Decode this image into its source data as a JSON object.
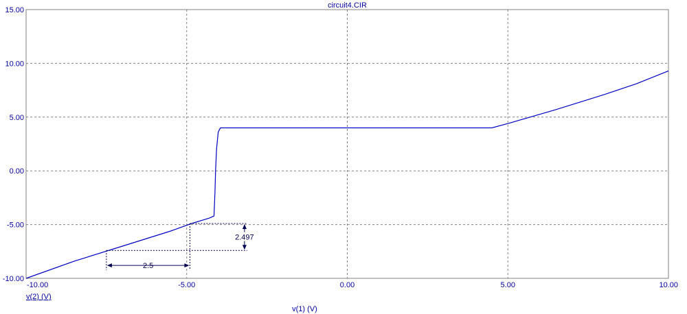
{
  "colors": {
    "axis_text": "#0000a0",
    "title_text": "#0000a0",
    "series": "#0000c0",
    "grid": "#808080",
    "frame": "#808080",
    "annotation": "#000050"
  },
  "chart_data": {
    "type": "line",
    "title": "circuit4.CIR",
    "xlabel": "v(1) (V)",
    "ylabel": "v(2) (V)",
    "xlim": [
      -10,
      10
    ],
    "ylim": [
      -10,
      15
    ],
    "grid": true,
    "x_ticks": [
      -10,
      -5,
      0,
      5,
      10
    ],
    "x_tick_labels": [
      "-10.00",
      "-5.00",
      "0.00",
      "5.00",
      "10.00"
    ],
    "y_ticks": [
      15,
      10,
      5,
      0,
      -5,
      -10
    ],
    "y_tick_labels": [
      "15.00",
      "10.00",
      "5.00",
      "0.00",
      "-5.00",
      "-10.00"
    ],
    "series": [
      {
        "x": [
          -10,
          -8.5,
          -7,
          -5.5,
          -4.85,
          -4.3,
          -4.15,
          -4.12,
          -4.1,
          -4.07,
          -4.02,
          -3.95,
          4.5,
          5,
          6.5,
          8,
          9,
          10
        ],
        "y": [
          -10,
          -8.4,
          -7.0,
          -5.6,
          -4.9,
          -4.4,
          -4.2,
          -2.0,
          0.0,
          2.0,
          3.6,
          4.0,
          4.0,
          4.4,
          5.7,
          7.1,
          8.1,
          9.3
        ]
      }
    ],
    "annotations": [
      {
        "type": "horizontal-dimension",
        "label": "2.5",
        "x_from": -7.5,
        "x_to": -4.9,
        "y": -8.8
      },
      {
        "type": "vertical-dimension",
        "label": "2.497",
        "x": -3.2,
        "y_from": -7.4,
        "y_to": -4.9
      }
    ]
  }
}
